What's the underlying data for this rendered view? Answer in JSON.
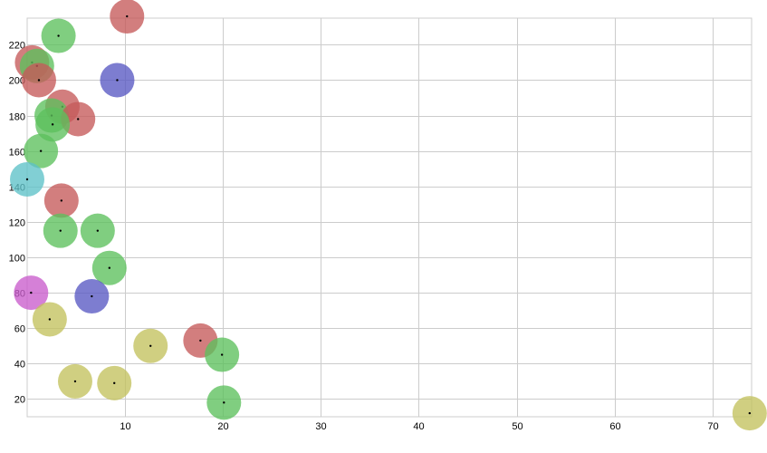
{
  "chart_data": {
    "type": "scatter",
    "title": "",
    "xlabel": "",
    "ylabel": "",
    "xlim": [
      0,
      74
    ],
    "ylim": [
      10,
      235
    ],
    "x_ticks": [
      10,
      20,
      30,
      40,
      50,
      60,
      70
    ],
    "y_ticks": [
      20,
      40,
      60,
      80,
      100,
      120,
      140,
      160,
      180,
      200,
      220
    ],
    "grid": true,
    "legend": "none",
    "colors": {
      "red": "#c55a5a",
      "green": "#5cc05c",
      "blue": "#5858c3",
      "teal": "#5ec1c8",
      "magenta": "#c95ccc",
      "olive": "#c3c15e"
    },
    "points": [
      {
        "x": 10.2,
        "y": 236,
        "color": "red"
      },
      {
        "x": 3.2,
        "y": 225,
        "color": "green"
      },
      {
        "x": 0.5,
        "y": 210,
        "color": "red"
      },
      {
        "x": 1.0,
        "y": 208,
        "color": "green"
      },
      {
        "x": 1.2,
        "y": 200,
        "color": "red"
      },
      {
        "x": 9.2,
        "y": 200,
        "color": "blue"
      },
      {
        "x": 3.6,
        "y": 185,
        "color": "red"
      },
      {
        "x": 2.5,
        "y": 180,
        "color": "green"
      },
      {
        "x": 5.2,
        "y": 178,
        "color": "red"
      },
      {
        "x": 2.6,
        "y": 175,
        "color": "green"
      },
      {
        "x": 1.4,
        "y": 160,
        "color": "green"
      },
      {
        "x": 0.0,
        "y": 144,
        "color": "teal"
      },
      {
        "x": 3.5,
        "y": 132,
        "color": "red"
      },
      {
        "x": 3.4,
        "y": 115,
        "color": "green"
      },
      {
        "x": 7.2,
        "y": 115,
        "color": "green"
      },
      {
        "x": 8.4,
        "y": 94,
        "color": "green"
      },
      {
        "x": 0.4,
        "y": 80,
        "color": "magenta"
      },
      {
        "x": 6.6,
        "y": 78,
        "color": "blue"
      },
      {
        "x": 2.3,
        "y": 65,
        "color": "olive"
      },
      {
        "x": 12.6,
        "y": 50,
        "color": "olive"
      },
      {
        "x": 17.7,
        "y": 53,
        "color": "red"
      },
      {
        "x": 19.9,
        "y": 45,
        "color": "green"
      },
      {
        "x": 4.9,
        "y": 30,
        "color": "olive"
      },
      {
        "x": 8.9,
        "y": 29,
        "color": "olive"
      },
      {
        "x": 20.1,
        "y": 18,
        "color": "green"
      },
      {
        "x": 73.8,
        "y": 12,
        "color": "olive"
      }
    ]
  }
}
